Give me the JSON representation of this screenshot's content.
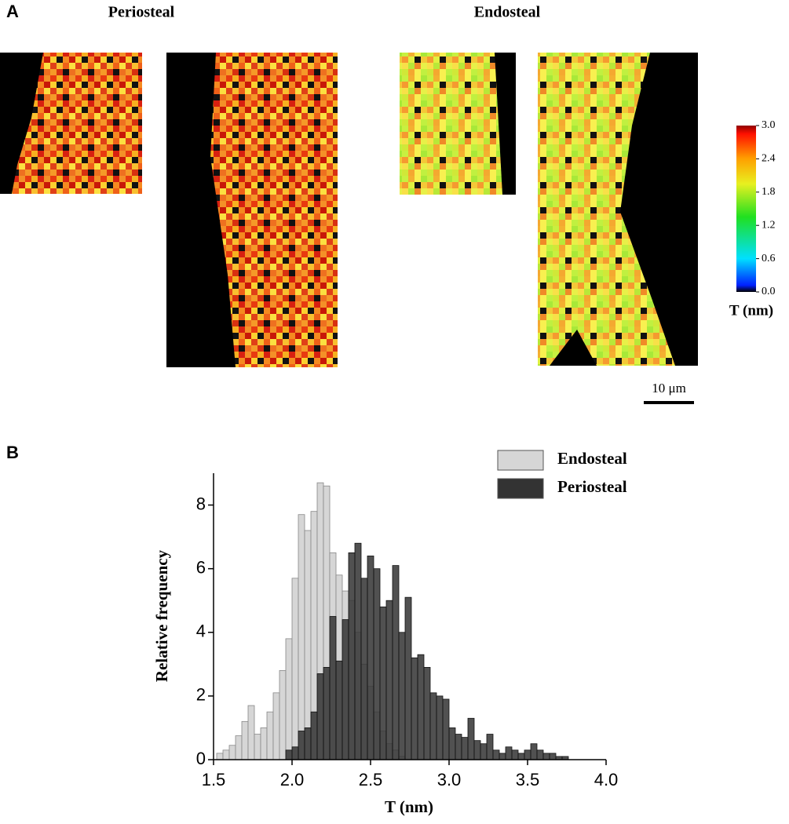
{
  "panel_a": {
    "label": "A",
    "titles": [
      "Periosteal",
      "Endosteal"
    ],
    "colorbar": {
      "lim": [
        0,
        3
      ],
      "ticks": [
        {
          "value": 3,
          "label": "3.0"
        },
        {
          "value": 2.4,
          "label": "2.4"
        },
        {
          "value": 1.8,
          "label": "1.8"
        },
        {
          "value": 1.2,
          "label": "1.2"
        },
        {
          "value": 0.6,
          "label": "0.6"
        },
        {
          "value": 0,
          "label": "0.0"
        }
      ],
      "label": "T (nm)"
    },
    "scale_bar": "10 μm"
  },
  "panel_b_label": "B",
  "chart_data": {
    "type": "histogram",
    "xlabel": "T (nm)",
    "ylabel": "Relative frequency",
    "bins": [
      1.52,
      1.56,
      1.6,
      1.64,
      1.68,
      1.72,
      1.76,
      1.8,
      1.84,
      1.88,
      1.92,
      1.96,
      2.0,
      2.04,
      2.08,
      2.12,
      2.16,
      2.2,
      2.24,
      2.28,
      2.32,
      2.36,
      2.4,
      2.44,
      2.48,
      2.52,
      2.56,
      2.6,
      2.64,
      2.68,
      2.72,
      2.76,
      2.8,
      2.84,
      2.88,
      2.92,
      2.96,
      3.0,
      3.04,
      3.08,
      3.12,
      3.16,
      3.2,
      3.24,
      3.28,
      3.32,
      3.36,
      3.4,
      3.44,
      3.48,
      3.52,
      3.56,
      3.6,
      3.64,
      3.68,
      3.72,
      3.76
    ],
    "series": [
      {
        "name": "Endosteal",
        "color": "#d6d6d6",
        "values": [
          0.2,
          0.3,
          0.45,
          0.75,
          1.2,
          1.7,
          0.8,
          1.0,
          1.5,
          2.1,
          2.8,
          3.8,
          5.7,
          7.7,
          7.2,
          7.8,
          8.7,
          8.6,
          6.5,
          5.8,
          5.3,
          5.0,
          4.0,
          3.0,
          2.3,
          1.5,
          0.9,
          0.5,
          0.3,
          0.1,
          0,
          0,
          0,
          0,
          0,
          0,
          0,
          0,
          0,
          0,
          0,
          0,
          0,
          0,
          0,
          0,
          0,
          0,
          0,
          0,
          0,
          0,
          0,
          0,
          0,
          0
        ]
      },
      {
        "name": "Periosteal",
        "color": "#333333",
        "values": [
          0,
          0,
          0,
          0,
          0,
          0,
          0,
          0,
          0,
          0,
          0,
          0.3,
          0.4,
          0.9,
          1.0,
          1.5,
          2.7,
          2.9,
          4.5,
          3.1,
          4.4,
          6.5,
          6.8,
          5.7,
          6.4,
          6.0,
          4.8,
          5.0,
          6.1,
          4.0,
          5.1,
          3.2,
          3.3,
          2.9,
          2.1,
          2.0,
          1.9,
          1.0,
          0.8,
          0.7,
          1.3,
          0.6,
          0.5,
          0.8,
          0.3,
          0.2,
          0.4,
          0.3,
          0.2,
          0.3,
          0.5,
          0.3,
          0.2,
          0.2,
          0.1,
          0.1
        ]
      }
    ],
    "xlim": [
      1.5,
      4.0
    ],
    "xticks": [
      1.5,
      {
        "value": 2,
        "label": "2.0"
      },
      2.5,
      {
        "value": 3,
        "label": "3.0"
      },
      3.5,
      {
        "value": 4,
        "label": "4.0"
      }
    ],
    "ylim": [
      0,
      9
    ],
    "yticks": [
      0,
      2,
      4,
      6,
      8
    ],
    "legend": "top-right"
  }
}
